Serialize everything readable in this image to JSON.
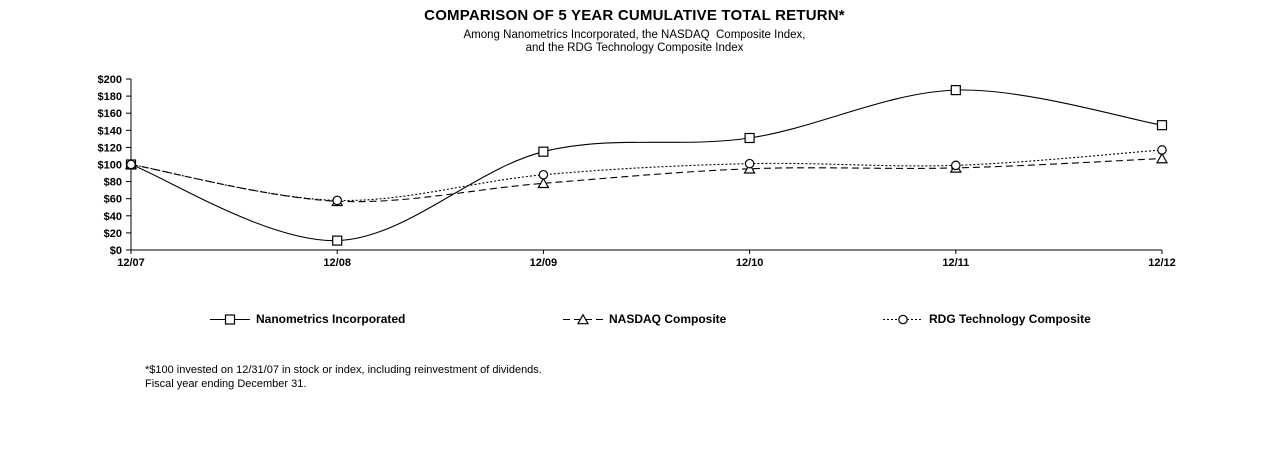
{
  "chart_data": {
    "type": "line",
    "title": "COMPARISON OF 5 YEAR CUMULATIVE TOTAL RETURN*",
    "subtitle_line1": "Among Nanometrics Incorporated, the NASDAQ  Composite Index,",
    "subtitle_line2": "and the RDG Technology Composite Index",
    "x": [
      "12/07",
      "12/08",
      "12/09",
      "12/10",
      "12/11",
      "12/12"
    ],
    "series": [
      {
        "name": "Nanometrics Incorporated",
        "marker": "square",
        "line_style": "solid",
        "values": [
          100,
          11,
          115,
          131,
          187,
          146
        ]
      },
      {
        "name": "NASDAQ Composite",
        "marker": "triangle",
        "line_style": "dashed",
        "values": [
          100,
          57,
          78,
          95,
          96,
          107
        ]
      },
      {
        "name": "RDG Technology Composite",
        "marker": "circle",
        "line_style": "dotted",
        "values": [
          100,
          58,
          88,
          101,
          99,
          117
        ]
      }
    ],
    "y_ticks": [
      0,
      20,
      40,
      60,
      80,
      100,
      120,
      140,
      160,
      180,
      200
    ],
    "y_tick_labels": [
      "$0",
      "$20",
      "$40",
      "$60",
      "$80",
      "$100",
      "$120",
      "$140",
      "$160",
      "$180",
      "$200"
    ],
    "ylim": [
      0,
      200
    ],
    "xlabel": "",
    "ylabel": "",
    "grid": false,
    "legend_position": "bottom",
    "line_color": "#000000",
    "marker_fill": "#ffffff",
    "background": "#ffffff"
  },
  "footnote": {
    "line1": "*$100 invested on 12/31/07 in stock or index, including reinvestment of dividends.",
    "line2": "Fiscal year ending December 31."
  }
}
